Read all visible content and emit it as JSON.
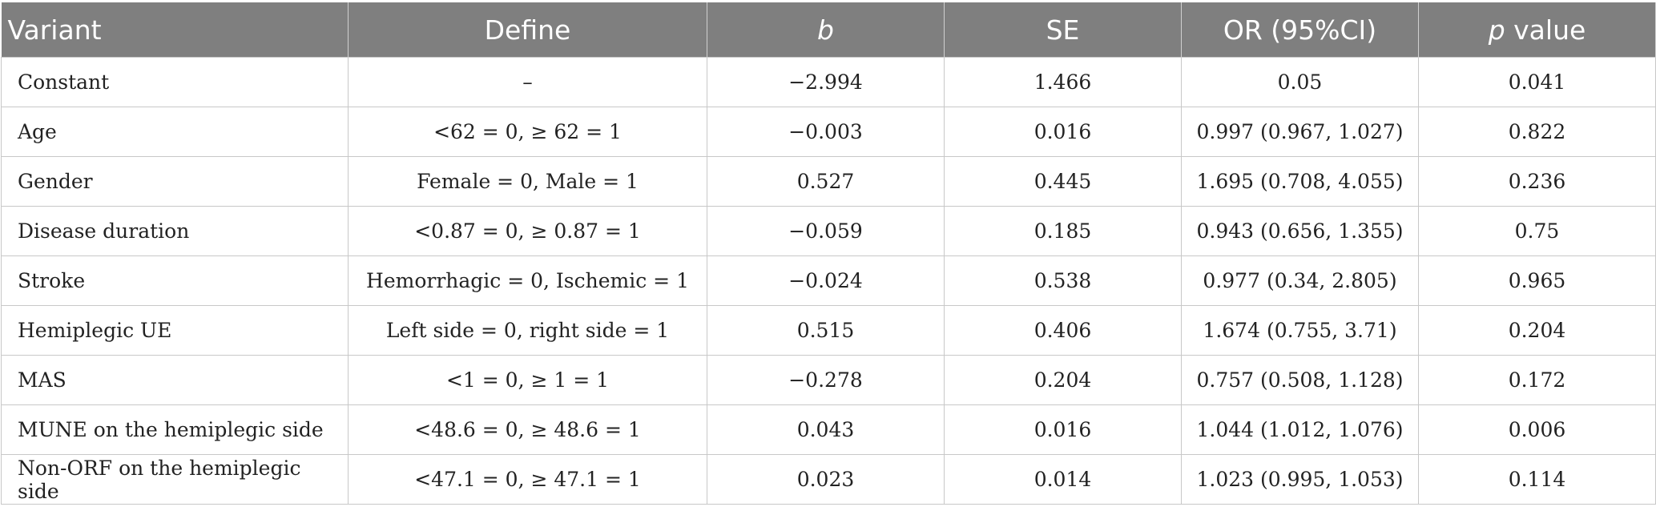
{
  "table": {
    "headers": {
      "variant": "Variant",
      "define": "Define",
      "b": "b",
      "se": "SE",
      "or": "OR (95%CI)",
      "p_italic": "p",
      "p_rest": " value"
    },
    "rows": [
      {
        "variant": "Constant",
        "define": "–",
        "b": "−2.994",
        "se": "1.466",
        "or": "0.05",
        "p": "0.041"
      },
      {
        "variant": "Age",
        "define": "<62 = 0, ≥ 62 = 1",
        "b": "−0.003",
        "se": "0.016",
        "or": "0.997 (0.967, 1.027)",
        "p": "0.822"
      },
      {
        "variant": "Gender",
        "define": "Female = 0, Male = 1",
        "b": "0.527",
        "se": "0.445",
        "or": "1.695 (0.708, 4.055)",
        "p": "0.236"
      },
      {
        "variant": "Disease duration",
        "define": "<0.87 = 0, ≥ 0.87 = 1",
        "b": "−0.059",
        "se": "0.185",
        "or": "0.943 (0.656, 1.355)",
        "p": "0.75"
      },
      {
        "variant": "Stroke",
        "define": "Hemorrhagic = 0, Ischemic = 1",
        "b": "−0.024",
        "se": "0.538",
        "or": "0.977 (0.34, 2.805)",
        "p": "0.965"
      },
      {
        "variant": "Hemiplegic UE",
        "define": "Left side = 0, right side = 1",
        "b": "0.515",
        "se": "0.406",
        "or": "1.674 (0.755, 3.71)",
        "p": "0.204"
      },
      {
        "variant": "MAS",
        "define": "<1 = 0, ≥ 1 = 1",
        "b": "−0.278",
        "se": "0.204",
        "or": "0.757 (0.508, 1.128)",
        "p": "0.172"
      },
      {
        "variant": "MUNE on the hemiplegic side",
        "define": "<48.6 = 0, ≥ 48.6 = 1",
        "b": "0.043",
        "se": "0.016",
        "or": "1.044 (1.012, 1.076)",
        "p": "0.006"
      },
      {
        "variant": "Non-ORF on the hemiplegic side",
        "define": "<47.1 = 0, ≥ 47.1 = 1",
        "b": "0.023",
        "se": "0.014",
        "or": "1.023 (0.995, 1.053)",
        "p": "0.114"
      }
    ]
  }
}
